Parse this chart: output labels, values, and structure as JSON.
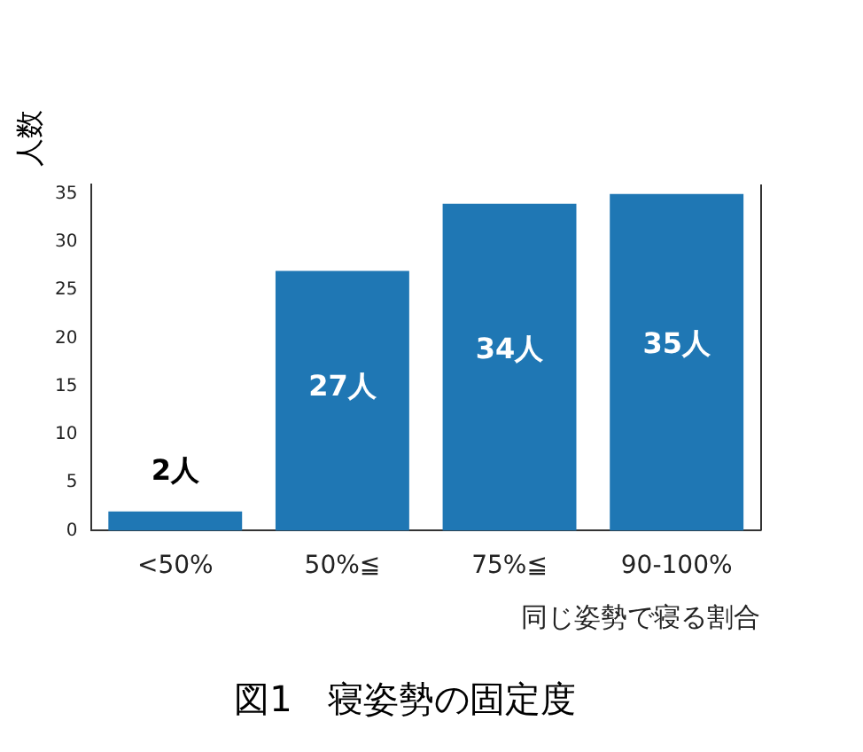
{
  "chart_data": {
    "type": "bar",
    "title": "図1　寝姿勢の固定度",
    "xlabel": "同じ姿勢で寝る割合",
    "ylabel": "人数",
    "categories": [
      "<50%",
      "50%≦",
      "75%≦",
      "90-100%"
    ],
    "values": [
      2,
      27,
      34,
      35
    ],
    "color": "#1f77b4",
    "value_labels": [
      "2人",
      "27人",
      "34人",
      "35人"
    ],
    "ylim": [
      0,
      36
    ],
    "yticks": [
      0,
      5,
      10,
      15,
      20,
      25,
      30,
      35
    ],
    "grid": false,
    "legend": false
  }
}
